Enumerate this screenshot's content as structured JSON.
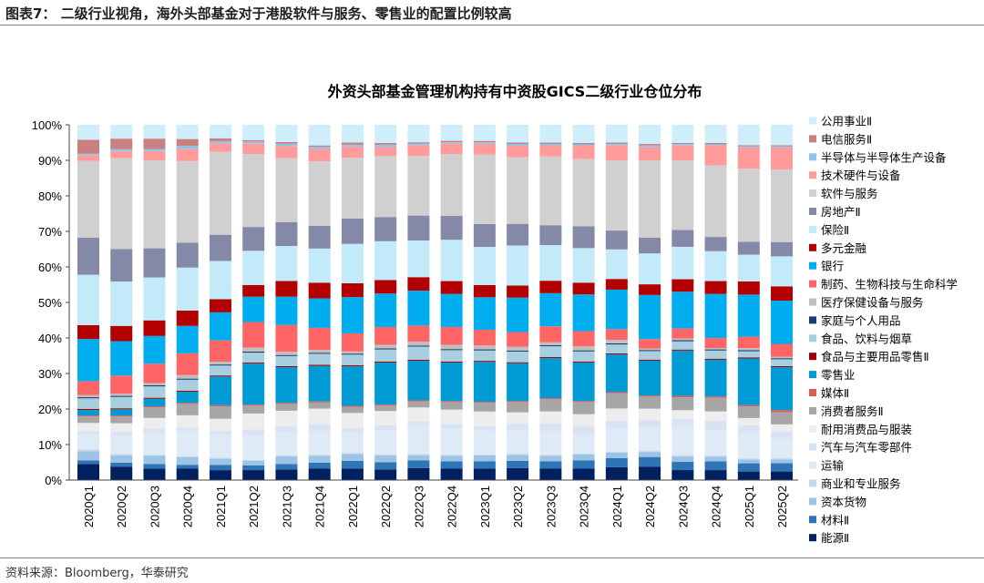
{
  "figure_title": "图表7：  二级行业视角，海外头部基金对于港股软件与服务、零售业的配置比例较高",
  "source": "资料来源：Bloomberg，华泰研究",
  "chart_data": {
    "type": "bar",
    "stacked": "percent",
    "title": "外资头部基金管理机构持有中资股GICS二级行业仓位分布",
    "xlabel": "",
    "ylabel": "",
    "ylim": [
      0,
      100
    ],
    "yticks": [
      "0%",
      "10%",
      "20%",
      "30%",
      "40%",
      "50%",
      "60%",
      "70%",
      "80%",
      "90%",
      "100%"
    ],
    "grid": false,
    "legend_position": "right",
    "categories": [
      "2020Q1",
      "2020Q2",
      "2020Q3",
      "2020Q4",
      "2021Q1",
      "2021Q2",
      "2021Q3",
      "2021Q4",
      "2022Q1",
      "2022Q2",
      "2022Q3",
      "2022Q4",
      "2023Q1",
      "2023Q2",
      "2023Q3",
      "2023Q4",
      "2024Q1",
      "2024Q2",
      "2024Q3",
      "2024Q4",
      "2025Q1",
      "2025Q2"
    ],
    "series": [
      {
        "name": "能源Ⅱ",
        "color": "#002060",
        "values": [
          4.5,
          3.8,
          3.2,
          3.2,
          2.8,
          2.8,
          3.0,
          3.2,
          3.2,
          3.0,
          3.4,
          3.2,
          3.2,
          3.4,
          3.2,
          3.2,
          3.6,
          3.8,
          2.8,
          2.8,
          2.4,
          2.4
        ]
      },
      {
        "name": "材料Ⅱ",
        "color": "#2e75b6",
        "values": [
          1.0,
          1.1,
          1.3,
          1.1,
          1.5,
          1.3,
          1.5,
          1.7,
          2.2,
          2.0,
          2.1,
          2.1,
          2.1,
          2.0,
          2.1,
          2.3,
          2.6,
          2.7,
          2.3,
          2.5,
          2.3,
          2.3
        ]
      },
      {
        "name": "资本货物",
        "color": "#9dc3e6",
        "values": [
          2.6,
          2.1,
          2.3,
          2.1,
          1.7,
          1.3,
          2.1,
          1.9,
          1.9,
          1.9,
          1.5,
          1.5,
          1.6,
          1.7,
          1.5,
          1.7,
          1.5,
          1.4,
          1.5,
          1.3,
          1.1,
          1.1
        ]
      },
      {
        "name": "商业和专业服务",
        "color": "#c3d9ef",
        "values": [
          0.5,
          0.3,
          0.3,
          0.3,
          0.3,
          0.3,
          0.3,
          0.3,
          0.3,
          0.3,
          0.3,
          0.3,
          0.3,
          0.3,
          0.3,
          0.3,
          0.3,
          0.3,
          0.3,
          0.3,
          0.3,
          0.3
        ]
      },
      {
        "name": "运输",
        "color": "#deebf7",
        "values": [
          4.1,
          5.3,
          6.1,
          7.0,
          6.5,
          7.0,
          6.3,
          6.5,
          5.7,
          6.7,
          7.8,
          7.4,
          6.5,
          6.5,
          6.5,
          5.1,
          6.4,
          6.7,
          8.0,
          7.2,
          7.1,
          5.4
        ]
      },
      {
        "name": "汽车与汽车零部件",
        "color": "#dae3f3",
        "values": [
          1.0,
          1.0,
          1.3,
          1.1,
          1.1,
          1.5,
          1.8,
          2.1,
          1.3,
          1.5,
          1.3,
          1.3,
          1.5,
          2.0,
          2.3,
          2.7,
          2.3,
          2.0,
          2.3,
          2.6,
          2.1,
          2.0
        ]
      },
      {
        "name": "耐用消费品与服装",
        "color": "#ededed",
        "values": [
          2.3,
          2.4,
          3.0,
          3.4,
          3.4,
          4.5,
          4.4,
          4.4,
          4.3,
          4.0,
          4.0,
          4.0,
          4.0,
          3.2,
          3.4,
          3.2,
          3.4,
          3.2,
          2.4,
          2.6,
          2.1,
          2.1
        ]
      },
      {
        "name": "消费者服务Ⅱ",
        "color": "#a6a6a6",
        "values": [
          1.8,
          1.9,
          3.0,
          3.2,
          3.5,
          2.2,
          1.9,
          1.7,
          1.7,
          1.5,
          1.7,
          2.1,
          2.4,
          2.9,
          3.4,
          3.4,
          4.3,
          3.4,
          3.6,
          3.8,
          3.2,
          3.4
        ]
      },
      {
        "name": "媒体Ⅱ",
        "color": "#e05a5a",
        "values": [
          0.3,
          0.3,
          0.3,
          0.3,
          0.3,
          0.3,
          0.3,
          0.3,
          0.3,
          0.3,
          0.3,
          0.3,
          0.3,
          0.3,
          0.3,
          0.3,
          0.3,
          0.3,
          0.4,
          0.4,
          0.4,
          0.6
        ]
      },
      {
        "name": "零售业",
        "color": "#009bd4",
        "values": [
          1.5,
          1.7,
          2.1,
          3.1,
          8.1,
          11.5,
          10.0,
          10.0,
          11.1,
          11.8,
          11.1,
          10.8,
          11.2,
          10.6,
          11.3,
          10.8,
          10.6,
          9.8,
          12.7,
          10.3,
          13.1,
          12.0
        ]
      },
      {
        "name": "食品与主要用品零售Ⅱ",
        "color": "#a00000",
        "values": [
          0.3,
          0.3,
          0.3,
          0.3,
          0.3,
          0.3,
          0.3,
          0.3,
          0.3,
          0.3,
          0.3,
          0.3,
          0.3,
          0.3,
          0.3,
          0.3,
          0.3,
          0.3,
          0.3,
          0.3,
          0.3,
          0.3
        ]
      },
      {
        "name": "食品、饮料与烟草",
        "color": "#a8cfe0",
        "values": [
          3.0,
          3.2,
          3.2,
          3.1,
          2.8,
          2.8,
          2.8,
          3.1,
          3.0,
          3.4,
          3.7,
          3.2,
          2.9,
          3.0,
          3.0,
          2.8,
          2.5,
          2.4,
          2.3,
          2.3,
          1.7,
          1.9
        ]
      },
      {
        "name": "家庭与个人用品",
        "color": "#1f3b73",
        "values": [
          0.3,
          0.3,
          0.3,
          0.3,
          0.3,
          0.3,
          0.3,
          0.3,
          0.3,
          0.3,
          0.3,
          0.3,
          0.3,
          0.3,
          0.3,
          0.3,
          0.3,
          0.3,
          0.3,
          0.3,
          0.3,
          0.3
        ]
      },
      {
        "name": "医疗保健设备与服务",
        "color": "#bfbfbf",
        "values": [
          0.6,
          0.6,
          0.6,
          1.0,
          0.8,
          1.1,
          0.9,
          0.8,
          0.6,
          1.0,
          1.1,
          1.2,
          1.1,
          1.1,
          0.8,
          1.1,
          1.0,
          0.4,
          0.5,
          0.4,
          0.6,
          0.4
        ]
      },
      {
        "name": "制药、生物科技与生命科学",
        "color": "#ff6565",
        "values": [
          3.9,
          5.1,
          5.5,
          6.1,
          6.0,
          7.2,
          7.5,
          6.2,
          5.1,
          5.0,
          4.5,
          5.0,
          4.4,
          4.1,
          4.5,
          4.3,
          3.0,
          2.7,
          2.8,
          2.8,
          3.2,
          3.6
        ]
      },
      {
        "name": "银行",
        "color": "#00aeef",
        "values": [
          11.8,
          9.7,
          7.8,
          7.7,
          7.9,
          7.1,
          7.9,
          8.3,
          10.2,
          9.4,
          9.8,
          9.3,
          9.1,
          9.7,
          9.3,
          10.3,
          11.1,
          12.4,
          10.3,
          12.4,
          11.8,
          12.1
        ]
      },
      {
        "name": "多元金融",
        "color": "#b30000",
        "values": [
          3.9,
          4.3,
          4.4,
          4.3,
          3.7,
          3.3,
          4.4,
          4.4,
          3.9,
          3.8,
          3.8,
          3.6,
          3.4,
          3.4,
          3.5,
          3.3,
          3.0,
          3.0,
          3.5,
          3.6,
          3.7,
          4.0
        ]
      },
      {
        "name": "保险Ⅱ",
        "color": "#c3eaf9",
        "values": [
          14.1,
          12.5,
          12.1,
          12.1,
          10.8,
          9.6,
          9.8,
          9.6,
          11.1,
          10.9,
          10.3,
          11.6,
          10.7,
          11.3,
          10.0,
          9.7,
          8.3,
          8.7,
          9.1,
          8.4,
          7.5,
          8.4
        ]
      },
      {
        "name": "房地产Ⅱ",
        "color": "#8389a6",
        "values": [
          10.4,
          9.1,
          8.2,
          7.0,
          7.4,
          6.7,
          6.7,
          6.4,
          7.1,
          6.8,
          7.0,
          6.7,
          6.4,
          6.1,
          5.6,
          6.1,
          5.3,
          4.4,
          4.7,
          4.0,
          3.6,
          4.0
        ]
      },
      {
        "name": "软件与服务",
        "color": "#d0d0d0",
        "values": [
          21.5,
          25.6,
          24.8,
          22.9,
          23.4,
          20.5,
          17.9,
          18.1,
          17.1,
          17.1,
          16.8,
          17.4,
          19.5,
          18.8,
          19.3,
          18.9,
          19.7,
          21.8,
          19.5,
          20.1,
          20.5,
          20.3
        ]
      },
      {
        "name": "技术硬件与设备",
        "color": "#ff9b9b",
        "values": [
          1.6,
          2.0,
          2.6,
          3.5,
          2.4,
          3.0,
          3.4,
          3.5,
          3.2,
          2.6,
          2.9,
          2.9,
          3.0,
          3.2,
          3.0,
          3.7,
          4.2,
          3.8,
          4.2,
          5.6,
          6.0,
          6.2
        ]
      },
      {
        "name": "半导体与半导体生产设备",
        "color": "#8ec3ea",
        "values": [
          0.4,
          0.6,
          0.6,
          0.8,
          0.6,
          0.5,
          0.6,
          0.6,
          0.5,
          0.6,
          0.5,
          0.4,
          0.4,
          0.5,
          0.5,
          0.4,
          0.4,
          0.4,
          0.4,
          0.3,
          0.3,
          0.3
        ]
      },
      {
        "name": "电信服务Ⅱ",
        "color": "#c9807f",
        "values": [
          3.9,
          2.9,
          2.9,
          1.9,
          0.8,
          0.4,
          0.5,
          0.4,
          0.6,
          0.5,
          0.4,
          0.4,
          0.4,
          0.4,
          0.4,
          0.4,
          0.4,
          0.4,
          0.3,
          0.4,
          0.3,
          0.3
        ]
      },
      {
        "name": "公用事业Ⅱ",
        "color": "#cdeefa",
        "values": [
          4.2,
          3.9,
          3.9,
          4.0,
          3.8,
          4.3,
          4.8,
          5.8,
          5.0,
          5.1,
          4.9,
          4.5,
          4.5,
          5.0,
          5.0,
          5.1,
          5.0,
          5.4,
          5.1,
          5.1,
          5.7,
          5.7
        ]
      }
    ]
  }
}
